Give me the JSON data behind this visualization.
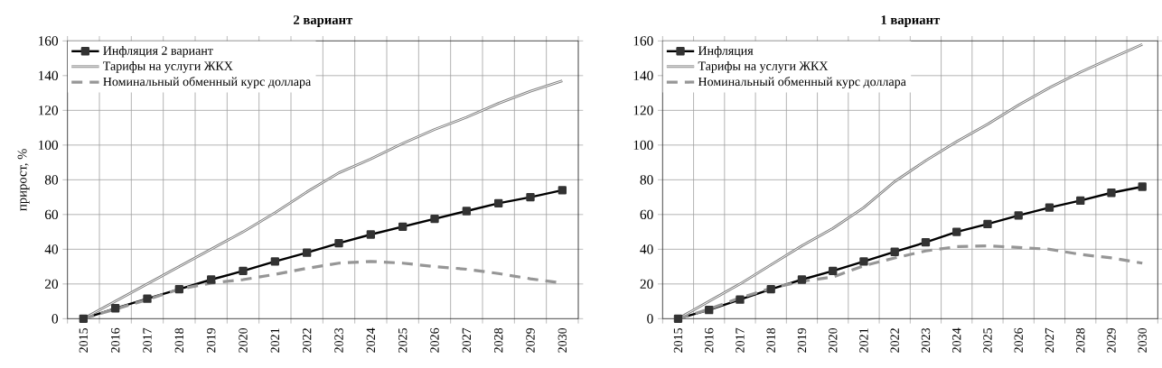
{
  "chart_data": [
    {
      "type": "line",
      "title": "2 вариант",
      "ylabel": "прирост, %",
      "categories": [
        "2015",
        "2016",
        "2017",
        "2018",
        "2019",
        "2020",
        "2021",
        "2022",
        "2023",
        "2024",
        "2025",
        "2026",
        "2027",
        "2028",
        "2029",
        "2030"
      ],
      "series": [
        {
          "name": "Инфляция 2 вариант",
          "color": "#000000",
          "marker": "square",
          "line_style": "solid",
          "values": [
            0,
            6,
            11.5,
            17,
            22.5,
            27.5,
            33,
            38,
            43.5,
            48.5,
            53,
            57.5,
            62,
            66.5,
            70,
            74
          ]
        },
        {
          "name": "Тарифы на услуги ЖКХ",
          "color": "#808080",
          "marker": "none",
          "line_style": "solid",
          "values": [
            0,
            10,
            20,
            30,
            40,
            50,
            61,
            73,
            84,
            92,
            101,
            109,
            116,
            124,
            131,
            137
          ]
        },
        {
          "name": "Номинальный обменный курс доллара",
          "color": "#969696",
          "marker": "none",
          "line_style": "dashed",
          "values": [
            0,
            5.5,
            11,
            17,
            20.5,
            22.5,
            25.5,
            29,
            32,
            33,
            32,
            30,
            28.5,
            26,
            23,
            20.5
          ]
        }
      ],
      "ylim": [
        0,
        160
      ],
      "yticks": [
        0,
        20,
        40,
        60,
        80,
        100,
        120,
        140,
        160
      ],
      "grid": true,
      "legend": "top left"
    },
    {
      "type": "line",
      "title": "1 вариант",
      "categories": [
        "2015",
        "2016",
        "2017",
        "2018",
        "2019",
        "2020",
        "2021",
        "2022",
        "2023",
        "2024",
        "2025",
        "2026",
        "2027",
        "2028",
        "2029",
        "2030"
      ],
      "series": [
        {
          "name": "Инфляция",
          "color": "#000000",
          "marker": "square",
          "line_style": "solid",
          "values": [
            0,
            5,
            11,
            17,
            22.5,
            27.5,
            33,
            38.5,
            44,
            50,
            54.5,
            59.5,
            64,
            68,
            72.5,
            76
          ]
        },
        {
          "name": "Тарифы на услуги ЖКХ",
          "color": "#808080",
          "marker": "none",
          "line_style": "solid",
          "values": [
            0,
            10,
            20,
            31,
            42,
            52,
            64,
            79,
            91,
            102,
            112,
            123,
            133,
            142,
            150,
            158
          ]
        },
        {
          "name": "Номинальный обменный курс доллара",
          "color": "#969696",
          "marker": "none",
          "line_style": "dashed",
          "values": [
            0,
            5.5,
            12,
            17.5,
            21.5,
            24,
            30.5,
            35,
            39,
            41.5,
            42,
            41,
            40,
            37,
            35,
            32
          ]
        }
      ],
      "ylim": [
        0,
        160
      ],
      "yticks": [
        0,
        20,
        40,
        60,
        80,
        100,
        120,
        140,
        160
      ],
      "grid": true,
      "legend": "top left"
    }
  ]
}
